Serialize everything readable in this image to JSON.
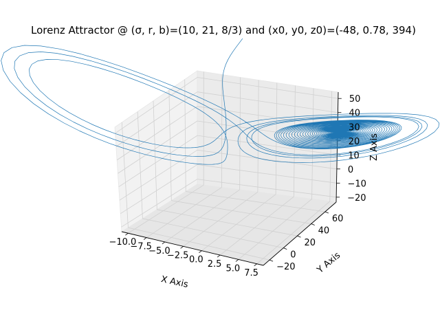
{
  "chart_data": {
    "type": "line",
    "projection": "3d",
    "title": "Lorenz Attractor @ (σ, r, b)=(10, 21, 8/3) and (x0, y0, z0)=(-48, 0.78, 394)",
    "xlabel": "X Axis",
    "ylabel": "Y Axis",
    "zlabel": "Z Axis",
    "grid": true,
    "line_color": "#1f77b4",
    "x_ticks": [
      "−10.0",
      "−7.5",
      "−5.0",
      "−2.5",
      "0.0",
      "2.5",
      "5.0",
      "7.5"
    ],
    "y_ticks": [
      "−20",
      "0",
      "20",
      "40",
      "60"
    ],
    "z_ticks": [
      "−20",
      "−10",
      "0",
      "10",
      "20",
      "30",
      "40",
      "50"
    ],
    "parameters": {
      "sigma": 10,
      "r": 21,
      "b": 2.6667
    },
    "initial_point": {
      "x0": -48,
      "y0": 0.78,
      "z0": 394
    },
    "series": [
      {
        "x": [],
        "y": [],
        "z": []
      }
    ]
  }
}
